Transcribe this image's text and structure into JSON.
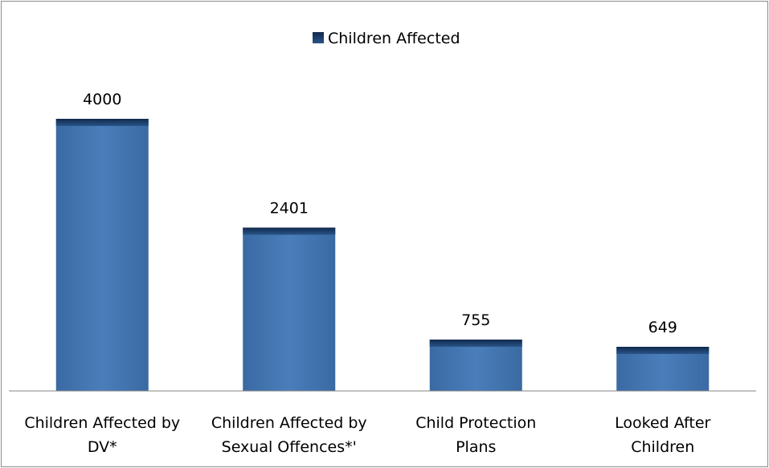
{
  "chart_data": {
    "type": "bar",
    "categories": [
      [
        "Children Affected by",
        "DV*"
      ],
      [
        "Children Affected by",
        "Sexual Offences*'"
      ],
      [
        "Child Protection",
        "Plans"
      ],
      [
        "Looked After",
        "Children"
      ]
    ],
    "series": [
      {
        "name": "Children Affected",
        "values": [
          4000,
          2401,
          755,
          649
        ]
      }
    ],
    "data_labels": [
      "4000",
      "2401",
      "755",
      "649"
    ],
    "ylim": [
      0,
      4000
    ],
    "grid": false,
    "y_axis_visible": false,
    "legend_position": "top",
    "colors": {
      "bar": "#4a7ebb",
      "bar_top": "#17375e",
      "axis": "#868686"
    }
  }
}
